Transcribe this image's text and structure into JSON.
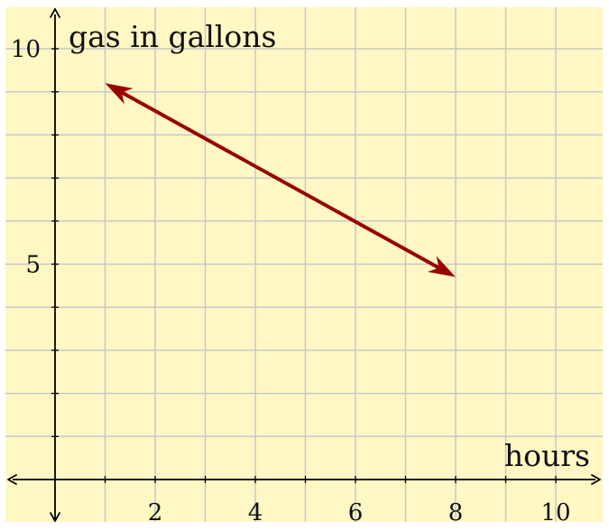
{
  "chart_data": {
    "type": "line",
    "xlabel": "hours",
    "ylabel": "gas in gallons",
    "xlim": [
      -1,
      11
    ],
    "ylim": [
      -1,
      11
    ],
    "grid": true,
    "x_ticks": [
      2,
      4,
      6,
      8,
      10
    ],
    "y_ticks": [
      5,
      10
    ],
    "series": [
      {
        "x": [
          1,
          8
        ],
        "y": [
          9.2,
          4.7
        ],
        "arrows": "both"
      }
    ]
  },
  "colors": {
    "background": "#fff8c4",
    "grid": "#c8c8c8",
    "axis": "#000000",
    "line": "#990000"
  }
}
